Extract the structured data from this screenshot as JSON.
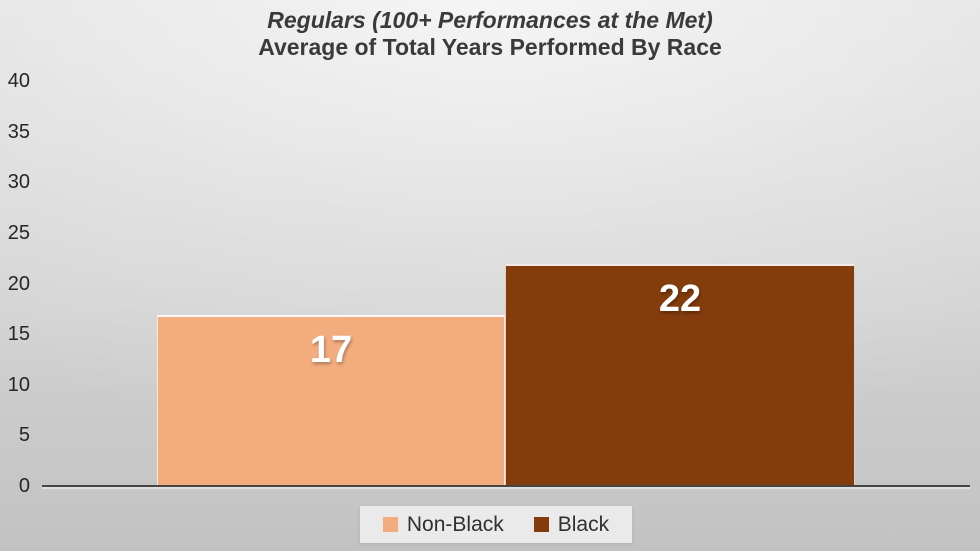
{
  "title": {
    "line1": "Regulars (100+ Performances at the Met)",
    "line2": "Average of Total Years Performed By Race"
  },
  "chart_data": {
    "type": "bar",
    "title": "Regulars (100+ Performances at the Met)",
    "subtitle": "Average of Total Years Performed By Race",
    "categories": [
      "Non-Black",
      "Black"
    ],
    "series": [
      {
        "name": "Non-Black",
        "value": 17,
        "label": "17",
        "color": "#F3AC7E"
      },
      {
        "name": "Black",
        "value": 22,
        "label": "22",
        "color": "#843C0C"
      }
    ],
    "xlabel": "",
    "ylabel": "",
    "ylim": [
      0,
      40
    ],
    "yticks": [
      0,
      5,
      10,
      15,
      20,
      25,
      30,
      35,
      40
    ],
    "grid": false,
    "legend_position": "bottom",
    "data_labels": "inside-end, white bold"
  }
}
